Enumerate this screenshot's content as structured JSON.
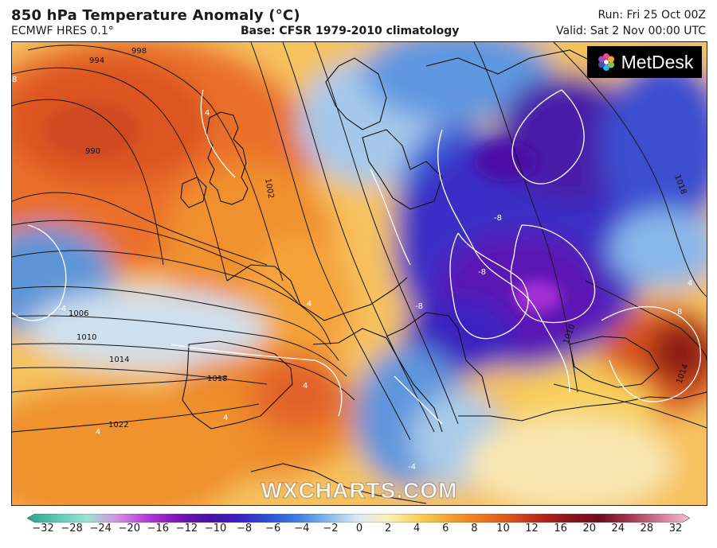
{
  "header": {
    "title": "850 hPa Temperature Anomaly (°C)",
    "model": "ECMWF HRES 0.1°",
    "base": "Base: CFSR 1979-2010 climatology",
    "run": "Run: Fri 25 Oct 00Z",
    "valid": "Valid: Sat 2 Nov 00:00 UTC"
  },
  "logo": {
    "text": "MetDesk"
  },
  "watermark": "WXCHARTS.COM",
  "isobar_labels": [
    "998",
    "994",
    "990",
    "1002",
    "1006",
    "1010",
    "1014",
    "1018",
    "1022",
    "1018",
    "1010",
    "1014"
  ],
  "anomaly_labels": [
    "8",
    "4",
    "4",
    "-4",
    "-8",
    "-8",
    "-8",
    "4",
    "4",
    "4",
    "8",
    "-4",
    "4"
  ],
  "colorbar": {
    "ticks": [
      "−32",
      "−28",
      "−24",
      "−20",
      "−16",
      "−12",
      "−10",
      "−8",
      "−6",
      "−4",
      "−2",
      "0",
      "2",
      "4",
      "6",
      "8",
      "10",
      "12",
      "16",
      "20",
      "24",
      "28",
      "32"
    ],
    "colors": [
      "#2ea38a",
      "#5fc6b4",
      "#9ee2d6",
      "#d48fe0",
      "#b23ad6",
      "#7a12b8",
      "#4d0fa6",
      "#3a1fc4",
      "#2f4fd6",
      "#3f7fe0",
      "#89b9ea",
      "#dde9f3",
      "#fbf0b8",
      "#f7cf5a",
      "#f2a232",
      "#ea7b22",
      "#d9541c",
      "#b8281c",
      "#8c1418",
      "#6e0e1e",
      "#a03a4e",
      "#d07a98",
      "#f3c2d4"
    ]
  },
  "map": {
    "colors": {
      "warm_strong": "#e8632a",
      "warm": "#f39a36",
      "warm_light": "#f8c764",
      "neutral": "#fbeec4",
      "cool_light": "#a9cbe9",
      "cool": "#3f7fdc",
      "cold": "#2c2fc0",
      "very_cold": "#4a0fa8",
      "coldest": "#a22fd8",
      "hot": "#b3261c"
    }
  }
}
